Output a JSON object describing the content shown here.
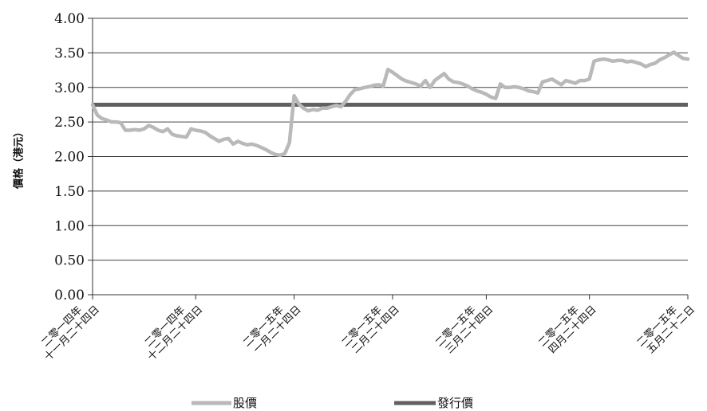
{
  "chart_data": {
    "type": "line",
    "ylabel": "價格（港元）",
    "ylim": [
      0,
      4
    ],
    "yticks": [
      "0.00",
      "0.50",
      "1.00",
      "1.50",
      "2.00",
      "2.50",
      "3.00",
      "3.50",
      "4.00"
    ],
    "xticks": [
      {
        "index": 0,
        "lines": [
          "二零一四年",
          "十一月二十四日"
        ]
      },
      {
        "index": 22,
        "lines": [
          "二零一四年",
          "十二月二十四日"
        ]
      },
      {
        "index": 43,
        "lines": [
          "二零一五年",
          "一月二十四日"
        ]
      },
      {
        "index": 64,
        "lines": [
          "二零一五年",
          "二月二十四日"
        ]
      },
      {
        "index": 84,
        "lines": [
          "二零一五年",
          "三月二十四日"
        ]
      },
      {
        "index": 106,
        "lines": [
          "二零一五年",
          "四月二十四日"
        ]
      },
      {
        "index": 127,
        "lines": [
          "二零一五年",
          "五月二十二日"
        ]
      }
    ],
    "series": [
      {
        "name": "股價",
        "color": "#b9b9b9",
        "values": [
          2.75,
          2.6,
          2.55,
          2.53,
          2.5,
          2.5,
          2.49,
          2.38,
          2.38,
          2.39,
          2.38,
          2.4,
          2.45,
          2.42,
          2.38,
          2.36,
          2.4,
          2.32,
          2.3,
          2.29,
          2.28,
          2.4,
          2.38,
          2.37,
          2.35,
          2.3,
          2.26,
          2.22,
          2.25,
          2.26,
          2.18,
          2.22,
          2.19,
          2.17,
          2.18,
          2.16,
          2.13,
          2.1,
          2.06,
          2.03,
          2.02,
          2.04,
          2.2,
          2.88,
          2.76,
          2.7,
          2.66,
          2.68,
          2.67,
          2.7,
          2.7,
          2.72,
          2.74,
          2.72,
          2.8,
          2.9,
          2.97,
          2.98,
          3.0,
          3.01,
          3.03,
          3.04,
          3.02,
          3.26,
          3.22,
          3.17,
          3.12,
          3.09,
          3.07,
          3.05,
          3.02,
          3.1,
          3.0,
          3.1,
          3.15,
          3.2,
          3.12,
          3.08,
          3.07,
          3.05,
          3.02,
          2.98,
          2.95,
          2.93,
          2.9,
          2.86,
          2.84,
          3.05,
          3.0,
          3.0,
          3.01,
          3.0,
          2.98,
          2.95,
          2.94,
          2.92,
          3.08,
          3.1,
          3.12,
          3.08,
          3.04,
          3.1,
          3.08,
          3.06,
          3.1,
          3.1,
          3.12,
          3.38,
          3.4,
          3.41,
          3.4,
          3.38,
          3.39,
          3.39,
          3.37,
          3.38,
          3.36,
          3.34,
          3.3,
          3.33,
          3.35,
          3.4,
          3.43,
          3.47,
          3.51,
          3.46,
          3.42,
          3.41
        ]
      },
      {
        "name": "發行價",
        "color": "#606060",
        "values": [
          2.75,
          2.75
        ]
      }
    ],
    "grid": true,
    "legend": "bottom"
  }
}
